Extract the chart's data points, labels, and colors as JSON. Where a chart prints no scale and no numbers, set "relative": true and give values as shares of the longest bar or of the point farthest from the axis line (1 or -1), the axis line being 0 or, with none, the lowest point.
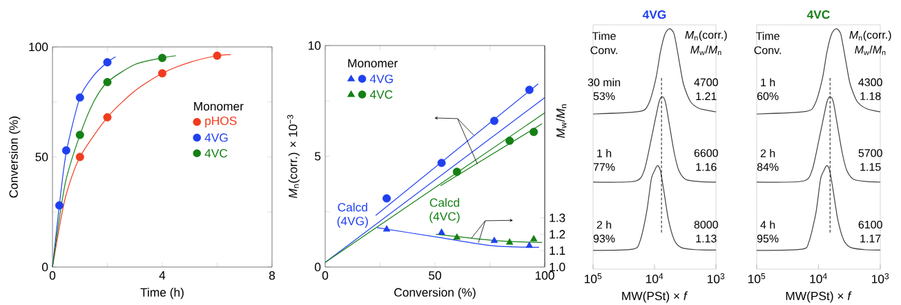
{
  "chart_data": [
    {
      "type": "scatter",
      "xlabel": "Time (h)",
      "ylabel": "Conversion (%)",
      "legend_title": "Monomer",
      "legend": "right",
      "xlim": [
        0,
        8
      ],
      "ylim": [
        0,
        100
      ],
      "xticks": [
        0,
        {
          "value": 2,
          "label": null
        },
        4,
        {
          "value": 6,
          "label": null
        },
        8
      ],
      "yticks": [
        0,
        {
          "value": 25,
          "label": null
        },
        50,
        {
          "value": 75,
          "label": null
        },
        100
      ],
      "series": [
        {
          "name": "pHOS",
          "color": "#f03c1e",
          "marker": "circle",
          "x": [
            1,
            2,
            4,
            6
          ],
          "values": [
            50,
            68,
            88,
            96
          ]
        },
        {
          "name": "4VG",
          "color": "#2040f0",
          "marker": "circle",
          "x": [
            0.25,
            0.5,
            1,
            2
          ],
          "values": [
            28,
            53,
            77,
            93
          ]
        },
        {
          "name": "4VC",
          "color": "#158015",
          "marker": "circle",
          "x": [
            1,
            2,
            4
          ],
          "values": [
            60,
            84,
            95
          ]
        },
        {
          "type": "line",
          "color": "#f03c1e",
          "x": [
            0,
            0.25,
            0.5,
            1,
            2,
            3,
            4,
            5,
            6,
            6.5
          ],
          "values": [
            0,
            18,
            33,
            50,
            68,
            80,
            88,
            93,
            96,
            96.5
          ]
        },
        {
          "type": "line",
          "color": "#2040f0",
          "x": [
            0,
            0.25,
            0.5,
            1,
            1.5,
            2,
            2.3
          ],
          "values": [
            0,
            28,
            52,
            77,
            87,
            93,
            95.5
          ]
        },
        {
          "type": "line",
          "color": "#158015",
          "x": [
            0,
            0.25,
            0.5,
            1,
            1.5,
            2,
            3,
            4,
            4.5
          ],
          "values": [
            0,
            22,
            40,
            60,
            75,
            84,
            92,
            95,
            96
          ]
        }
      ]
    },
    {
      "type": "scatter",
      "xlabel": "Conversion (%)",
      "ylabel": "*M*$_{n}$(corr.) × 10$^{−3}$",
      "y2label": "*M*$_{w}$/*M*$_{n}$",
      "legend_title": "Monomer",
      "legend": "top left",
      "xlim": [
        0,
        100
      ],
      "ylim": [
        0,
        10
      ],
      "y2lim": [
        1,
        2.35
      ],
      "xticks": [
        0,
        {
          "value": 25,
          "label": null
        },
        50,
        {
          "value": 75,
          "label": null
        },
        100
      ],
      "yticks": [
        0,
        {
          "value": 2.5,
          "label": null
        },
        5,
        {
          "value": 7.5,
          "label": null
        },
        10
      ],
      "y2ticks": [
        {
          "value": 1,
          "label": "1.0"
        },
        1.1,
        1.2,
        1.3
      ],
      "series": [
        {
          "name": "4VG",
          "color": "#2040f0",
          "marker": "circle",
          "x": [
            28,
            53,
            77,
            93
          ],
          "values": [
            3.1,
            4.7,
            6.6,
            8.0
          ]
        },
        {
          "name": "4VG",
          "color": "#2040f0",
          "marker": "triangle",
          "axis": "y2",
          "x": [
            28,
            53,
            77,
            93
          ],
          "values": [
            1.23,
            1.21,
            1.16,
            1.13
          ]
        },
        {
          "name": "4VC",
          "color": "#158015",
          "marker": "circle",
          "x": [
            60,
            84,
            95
          ],
          "values": [
            4.3,
            5.7,
            6.1
          ]
        },
        {
          "name": "4VC",
          "color": "#158015",
          "marker": "triangle",
          "axis": "y2",
          "x": [
            60,
            84,
            95
          ],
          "values": [
            1.18,
            1.15,
            1.17
          ]
        },
        {
          "type": "line",
          "color": "#2040f0",
          "x": [
            23,
            97
          ],
          "values": [
            2.33,
            8.27
          ]
        },
        {
          "type": "line",
          "color": "#158015",
          "x": [
            52.5,
            98.8
          ],
          "values": [
            3.67,
            6.47
          ]
        },
        {
          "type": "line",
          "name": "Calcd (4VG)",
          "color": "#2040f0",
          "x": [
            0,
            100
          ],
          "values": [
            0.21,
            7.65
          ]
        },
        {
          "type": "line",
          "name": "Calcd (4VC)",
          "color": "#158015",
          "x": [
            0,
            100
          ],
          "values": [
            0.21,
            6.96
          ]
        },
        {
          "type": "line",
          "color": "#2040f0",
          "axis": "y2",
          "x": [
            23.6,
            52,
            76,
            97.4
          ],
          "values": [
            1.24,
            1.18,
            1.13,
            1.12
          ]
        },
        {
          "type": "line",
          "color": "#158015",
          "axis": "y2",
          "x": [
            50.4,
            78.2,
            98.8
          ],
          "values": [
            1.2,
            1.16,
            1.15
          ]
        }
      ]
    },
    {
      "type": "line",
      "title": "4VG",
      "relative": true,
      "log": "x",
      "xlim": [
        100000,
        1000
      ],
      "xlabel": "MW(PSt) × *f*",
      "xticks": [
        {
          "value": 100000,
          "label": "10$^{5}$"
        },
        {
          "value": 10000,
          "label": "10$^{4}$"
        },
        {
          "value": 1000,
          "label": "10$^{3}$"
        }
      ],
      "ref_lines": [
        {
          "axis": "x",
          "value": 7700,
          "line_style": "dashed"
        }
      ],
      "annotations": [
        "Time",
        "Conv.",
        "*M*$_{n}$(corr.)",
        "*M*$_{w}$/*M*$_{n}$",
        "30 min",
        "53%",
        "4700",
        "1.21",
        "1 h",
        "77%",
        "6600",
        "1.16",
        "2 h",
        "93%",
        "8000",
        "1.13"
      ],
      "series": [
        {
          "color": "#404040",
          "x": [
            100000,
            17400,
            12400,
            9530,
            8030,
            6760,
            5690,
            4790,
            4030,
            3400,
            2620,
            1860,
            1000
          ],
          "values": [
            0.645,
            0.656,
            0.689,
            0.791,
            0.902,
            0.977,
            1.0,
            0.977,
            0.875,
            0.772,
            0.698,
            0.668,
            0.654
          ]
        },
        {
          "color": "#404040",
          "x": [
            100000,
            20700,
            14700,
            11300,
            9530,
            8380,
            7500,
            6640,
            5690,
            4790,
            4030,
            3110,
            1860,
            1000
          ],
          "values": [
            0.362,
            0.366,
            0.411,
            0.541,
            0.633,
            0.698,
            0.717,
            0.694,
            0.596,
            0.485,
            0.411,
            0.373,
            0.364,
            0.362
          ]
        },
        {
          "color": "#404040",
          "x": [
            100000,
            22600,
            17400,
            13500,
            11300,
            9960,
            8980,
            8030,
            7060,
            5940,
            4790,
            3700,
            2210,
            1000
          ],
          "values": [
            0.078,
            0.083,
            0.113,
            0.234,
            0.373,
            0.41,
            0.431,
            0.41,
            0.327,
            0.206,
            0.122,
            0.09,
            0.081,
            0.079
          ]
        }
      ]
    },
    {
      "type": "line",
      "title": "4VC",
      "relative": true,
      "log": "x",
      "xlim": [
        100000,
        1000
      ],
      "xlabel": "MW(PSt) × *f*",
      "xticks": [
        {
          "value": 100000,
          "label": "10$^{5}$"
        },
        {
          "value": 10000,
          "label": "10$^{4}$"
        },
        {
          "value": 1000,
          "label": "10$^{3}$"
        }
      ],
      "ref_lines": [
        {
          "axis": "x",
          "value": 6500,
          "line_style": "dashed"
        }
      ],
      "annotations": [
        "Time",
        "Conv.",
        "*M*$_{n}$(corr.)",
        "*M*$_{w}$/*M*$_{n}$",
        "1 h",
        "60%",
        "4300",
        "1.18",
        "2 h",
        "84%",
        "5700",
        "1.15",
        "4 h",
        "95%",
        "6100",
        "1.17"
      ],
      "series": [
        {
          "color": "#404040",
          "x": [
            100000,
            15800,
            11300,
            8670,
            7310,
            6150,
            5180,
            4360,
            3670,
            3090,
            2380,
            1690,
            1000
          ],
          "values": [
            0.645,
            0.656,
            0.689,
            0.791,
            0.902,
            0.977,
            1.0,
            0.977,
            0.875,
            0.772,
            0.698,
            0.668,
            0.654
          ]
        },
        {
          "color": "#404040",
          "x": [
            100000,
            17900,
            12700,
            9770,
            8240,
            7250,
            6490,
            5740,
            4920,
            4140,
            3490,
            2690,
            1610,
            1000
          ],
          "values": [
            0.362,
            0.366,
            0.411,
            0.541,
            0.633,
            0.698,
            0.717,
            0.694,
            0.596,
            0.485,
            0.411,
            0.373,
            0.364,
            0.362
          ]
        },
        {
          "color": "#404040",
          "x": [
            100000,
            18500,
            14300,
            11000,
            9290,
            8170,
            7360,
            6580,
            5790,
            4870,
            3930,
            3030,
            1810,
            1000
          ],
          "values": [
            0.078,
            0.083,
            0.113,
            0.234,
            0.373,
            0.41,
            0.431,
            0.41,
            0.327,
            0.206,
            0.122,
            0.09,
            0.081,
            0.079
          ]
        }
      ]
    }
  ]
}
